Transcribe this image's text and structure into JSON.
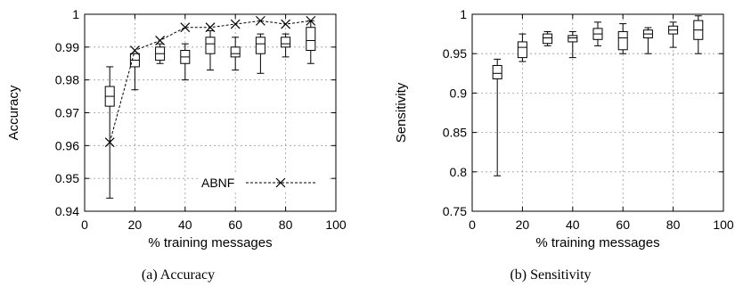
{
  "chart_data": [
    {
      "type": "box",
      "caption": "(a)  Accuracy",
      "xlabel": "% training messages",
      "ylabel": "Accuracy",
      "xlim": [
        0,
        100
      ],
      "ylim": [
        0.94,
        1.0
      ],
      "xticks": [
        "0",
        "20",
        "40",
        "60",
        "80",
        "100"
      ],
      "yticks": [
        "0.94",
        "0.95",
        "0.96",
        "0.97",
        "0.98",
        "0.99",
        "1"
      ],
      "grid": true,
      "legend_position": "bottom-right",
      "boxes": [
        {
          "x": 10,
          "min": 0.944,
          "q1": 0.972,
          "median": 0.975,
          "q3": 0.978,
          "max": 0.984
        },
        {
          "x": 20,
          "min": 0.977,
          "q1": 0.984,
          "median": 0.986,
          "q3": 0.988,
          "max": 0.988
        },
        {
          "x": 30,
          "min": 0.985,
          "q1": 0.986,
          "median": 0.988,
          "q3": 0.99,
          "max": 0.991
        },
        {
          "x": 40,
          "min": 0.98,
          "q1": 0.985,
          "median": 0.987,
          "q3": 0.989,
          "max": 0.991
        },
        {
          "x": 50,
          "min": 0.983,
          "q1": 0.988,
          "median": 0.991,
          "q3": 0.993,
          "max": 0.995
        },
        {
          "x": 60,
          "min": 0.983,
          "q1": 0.987,
          "median": 0.988,
          "q3": 0.99,
          "max": 0.993
        },
        {
          "x": 70,
          "min": 0.982,
          "q1": 0.988,
          "median": 0.991,
          "q3": 0.993,
          "max": 0.994
        },
        {
          "x": 80,
          "min": 0.987,
          "q1": 0.99,
          "median": 0.991,
          "q3": 0.993,
          "max": 0.994
        },
        {
          "x": 90,
          "min": 0.985,
          "q1": 0.989,
          "median": 0.992,
          "q3": 0.996,
          "max": 0.998
        }
      ],
      "series": [
        {
          "name": "ABNF",
          "style": "dashed-x",
          "x": [
            10,
            20,
            30,
            40,
            50,
            60,
            70,
            80,
            90
          ],
          "values": [
            0.961,
            0.989,
            0.992,
            0.996,
            0.996,
            0.997,
            0.998,
            0.997,
            0.998
          ]
        }
      ]
    },
    {
      "type": "box",
      "caption": "(b)  Sensitivity",
      "xlabel": "% training messages",
      "ylabel": "Sensitivity",
      "xlim": [
        0,
        100
      ],
      "ylim": [
        0.75,
        1.0
      ],
      "xticks": [
        "0",
        "20",
        "40",
        "60",
        "80",
        "100"
      ],
      "yticks": [
        "0.75",
        "0.8",
        "0.85",
        "0.9",
        "0.95",
        "1"
      ],
      "grid": true,
      "boxes": [
        {
          "x": 10,
          "min": 0.795,
          "q1": 0.918,
          "median": 0.925,
          "q3": 0.935,
          "max": 0.943
        },
        {
          "x": 20,
          "min": 0.94,
          "q1": 0.945,
          "median": 0.958,
          "q3": 0.965,
          "max": 0.975
        },
        {
          "x": 30,
          "min": 0.96,
          "q1": 0.963,
          "median": 0.97,
          "q3": 0.975,
          "max": 0.978
        },
        {
          "x": 40,
          "min": 0.945,
          "q1": 0.965,
          "median": 0.97,
          "q3": 0.973,
          "max": 0.978
        },
        {
          "x": 50,
          "min": 0.96,
          "q1": 0.968,
          "median": 0.975,
          "q3": 0.982,
          "max": 0.99
        },
        {
          "x": 60,
          "min": 0.95,
          "q1": 0.955,
          "median": 0.97,
          "q3": 0.978,
          "max": 0.988
        },
        {
          "x": 70,
          "min": 0.95,
          "q1": 0.97,
          "median": 0.975,
          "q3": 0.98,
          "max": 0.983
        },
        {
          "x": 80,
          "min": 0.958,
          "q1": 0.975,
          "median": 0.98,
          "q3": 0.985,
          "max": 0.99
        },
        {
          "x": 90,
          "min": 0.95,
          "q1": 0.968,
          "median": 0.98,
          "q3": 0.992,
          "max": 0.998
        }
      ]
    }
  ]
}
